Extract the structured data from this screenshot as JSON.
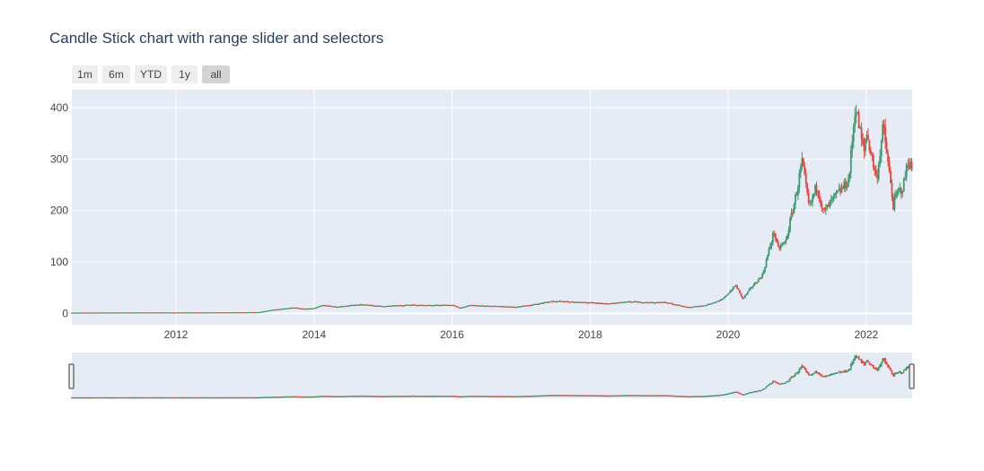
{
  "title": "Candle Stick chart with range slider and selectors",
  "range_selector": {
    "buttons": [
      {
        "label": "1m",
        "active": false
      },
      {
        "label": "6m",
        "active": false
      },
      {
        "label": "YTD",
        "active": false
      },
      {
        "label": "1y",
        "active": false
      },
      {
        "label": "all",
        "active": true
      }
    ]
  },
  "colors": {
    "increasing": "#3d9970",
    "decreasing": "#e8463b",
    "plot_bg": "#e5ecf6",
    "grid": "#ffffff",
    "text": "#2a3f5f",
    "tick": "#444444"
  },
  "chart_data": {
    "type": "candlestick",
    "title": "Candle Stick chart with range slider and selectors",
    "x_range": [
      "2010-06-29",
      "2022-09-01"
    ],
    "y_range": [
      -22,
      435
    ],
    "x_ticks": [
      "2012",
      "2014",
      "2016",
      "2018",
      "2020",
      "2022"
    ],
    "y_ticks": [
      0,
      100,
      200,
      300,
      400
    ],
    "grid": true,
    "range_slider": true,
    "price_path": [
      [
        "2010-06-29",
        1.6
      ],
      [
        "2011-06-01",
        1.9
      ],
      [
        "2012-06-01",
        2.0
      ],
      [
        "2013-01-01",
        2.3
      ],
      [
        "2013-03-15",
        2.6
      ],
      [
        "2013-05-15",
        6.5
      ],
      [
        "2013-09-15",
        11.5
      ],
      [
        "2013-11-15",
        9.0
      ],
      [
        "2014-01-01",
        10.0
      ],
      [
        "2014-02-15",
        16.0
      ],
      [
        "2014-05-01",
        13.0
      ],
      [
        "2014-09-01",
        17.5
      ],
      [
        "2015-01-01",
        14.0
      ],
      [
        "2015-06-01",
        17.0
      ],
      [
        "2015-09-01",
        16.0
      ],
      [
        "2016-01-01",
        16.5
      ],
      [
        "2016-02-15",
        10.5
      ],
      [
        "2016-04-01",
        16.0
      ],
      [
        "2016-09-01",
        14.0
      ],
      [
        "2016-12-01",
        12.5
      ],
      [
        "2017-03-01",
        17.0
      ],
      [
        "2017-06-15",
        24.0
      ],
      [
        "2017-09-01",
        23.0
      ],
      [
        "2018-01-01",
        21.0
      ],
      [
        "2018-04-01",
        19.0
      ],
      [
        "2018-08-01",
        23.0
      ],
      [
        "2018-12-01",
        21.0
      ],
      [
        "2019-02-01",
        22.0
      ],
      [
        "2019-06-01",
        12.0
      ],
      [
        "2019-09-01",
        16.0
      ],
      [
        "2019-12-01",
        27.0
      ],
      [
        "2020-02-10",
        55.0
      ],
      [
        "2020-03-18",
        28.0
      ],
      [
        "2020-05-01",
        50.0
      ],
      [
        "2020-07-01",
        75.0
      ],
      [
        "2020-08-31",
        160.0
      ],
      [
        "2020-09-20",
        125.0
      ],
      [
        "2020-11-01",
        140.0
      ],
      [
        "2020-12-31",
        240.0
      ],
      [
        "2021-01-25",
        295.0
      ],
      [
        "2021-03-05",
        205.0
      ],
      [
        "2021-04-15",
        250.0
      ],
      [
        "2021-05-20",
        195.0
      ],
      [
        "2021-07-15",
        225.0
      ],
      [
        "2021-09-01",
        245.0
      ],
      [
        "2021-10-01",
        260.0
      ],
      [
        "2021-11-04",
        405.0
      ],
      [
        "2021-12-20",
        310.0
      ],
      [
        "2022-01-01",
        355.0
      ],
      [
        "2022-02-25",
        260.0
      ],
      [
        "2022-04-01",
        365.0
      ],
      [
        "2022-05-24",
        210.0
      ],
      [
        "2022-06-15",
        235.0
      ],
      [
        "2022-07-15",
        245.0
      ],
      [
        "2022-08-10",
        300.0
      ],
      [
        "2022-09-01",
        278.0
      ]
    ]
  }
}
